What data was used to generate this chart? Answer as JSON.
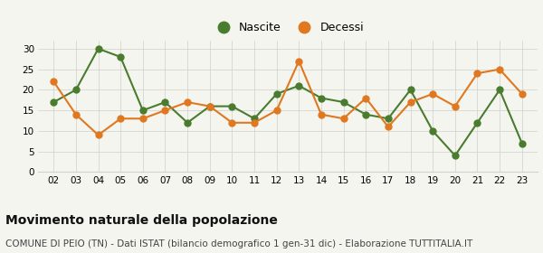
{
  "years": [
    2,
    3,
    4,
    5,
    6,
    7,
    8,
    9,
    10,
    11,
    12,
    13,
    14,
    15,
    16,
    17,
    18,
    19,
    20,
    21,
    22,
    23
  ],
  "nascite": [
    17,
    20,
    30,
    28,
    15,
    17,
    12,
    16,
    16,
    13,
    19,
    21,
    18,
    17,
    14,
    13,
    20,
    10,
    4,
    12,
    20,
    7
  ],
  "decessi": [
    22,
    14,
    9,
    13,
    13,
    15,
    17,
    16,
    12,
    12,
    15,
    27,
    14,
    13,
    18,
    11,
    17,
    19,
    16,
    24,
    25,
    19
  ],
  "nascite_color": "#4a7c2f",
  "decessi_color": "#e07820",
  "background_color": "#f5f5f0",
  "grid_color": "#d0d0cc",
  "title": "Movimento naturale della popolazione",
  "subtitle": "COMUNE DI PEIO (TN) - Dati ISTAT (bilancio demografico 1 gen-31 dic) - Elaborazione TUTTITALIA.IT",
  "legend_nascite": "Nascite",
  "legend_decessi": "Decessi",
  "ylim": [
    0,
    32
  ],
  "yticks": [
    0,
    5,
    10,
    15,
    20,
    25,
    30
  ],
  "title_fontsize": 10,
  "subtitle_fontsize": 7.5,
  "marker_size": 5,
  "line_width": 1.5
}
